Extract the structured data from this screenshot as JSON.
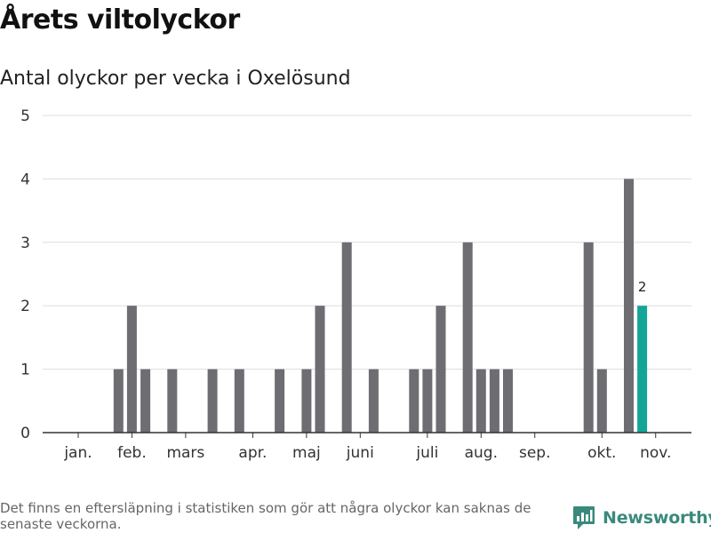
{
  "chart_data": {
    "type": "bar",
    "title": "Årets viltolyckor",
    "subtitle": "Antal olyckor per vecka i Oxelösund",
    "xlabel": "",
    "ylabel": "",
    "ylim": [
      0,
      5
    ],
    "yticks": [
      "0",
      "1",
      "2",
      "3",
      "4",
      "5"
    ],
    "grid": true,
    "month_labels": [
      "jan.",
      "feb.",
      "mars",
      "apr.",
      "maj",
      "juni",
      "juli",
      "aug.",
      "sep.",
      "okt.",
      "nov."
    ],
    "weeks": [
      1,
      2,
      3,
      4,
      5,
      6,
      7,
      8,
      9,
      10,
      11,
      12,
      13,
      14,
      15,
      16,
      17,
      18,
      19,
      20,
      21,
      22,
      23,
      24,
      25,
      26,
      27,
      28,
      29,
      30,
      31,
      32,
      33,
      34,
      35,
      36,
      37,
      38,
      39,
      40,
      41,
      42,
      43,
      44,
      45,
      46
    ],
    "values": [
      0,
      0,
      0,
      1,
      2,
      1,
      0,
      1,
      0,
      0,
      1,
      0,
      1,
      0,
      0,
      1,
      0,
      1,
      2,
      0,
      3,
      0,
      1,
      0,
      0,
      1,
      1,
      2,
      0,
      3,
      1,
      1,
      1,
      0,
      0,
      0,
      0,
      0,
      3,
      1,
      0,
      4,
      2,
      0,
      0,
      0
    ],
    "highlight_week": 43,
    "highlight_label": "2",
    "colors": {
      "bar": "#6d6d72",
      "highlight": "#14a596",
      "grid": "#dddddd",
      "axis": "#333333"
    }
  },
  "footnote": "Det finns en eftersläpning i statistiken som gör att några olyckor kan saknas de senaste veckorna.",
  "brand": {
    "name": "Newsworthy",
    "icon": "newsworthy-logo-icon",
    "color": "#3a8a7c"
  }
}
